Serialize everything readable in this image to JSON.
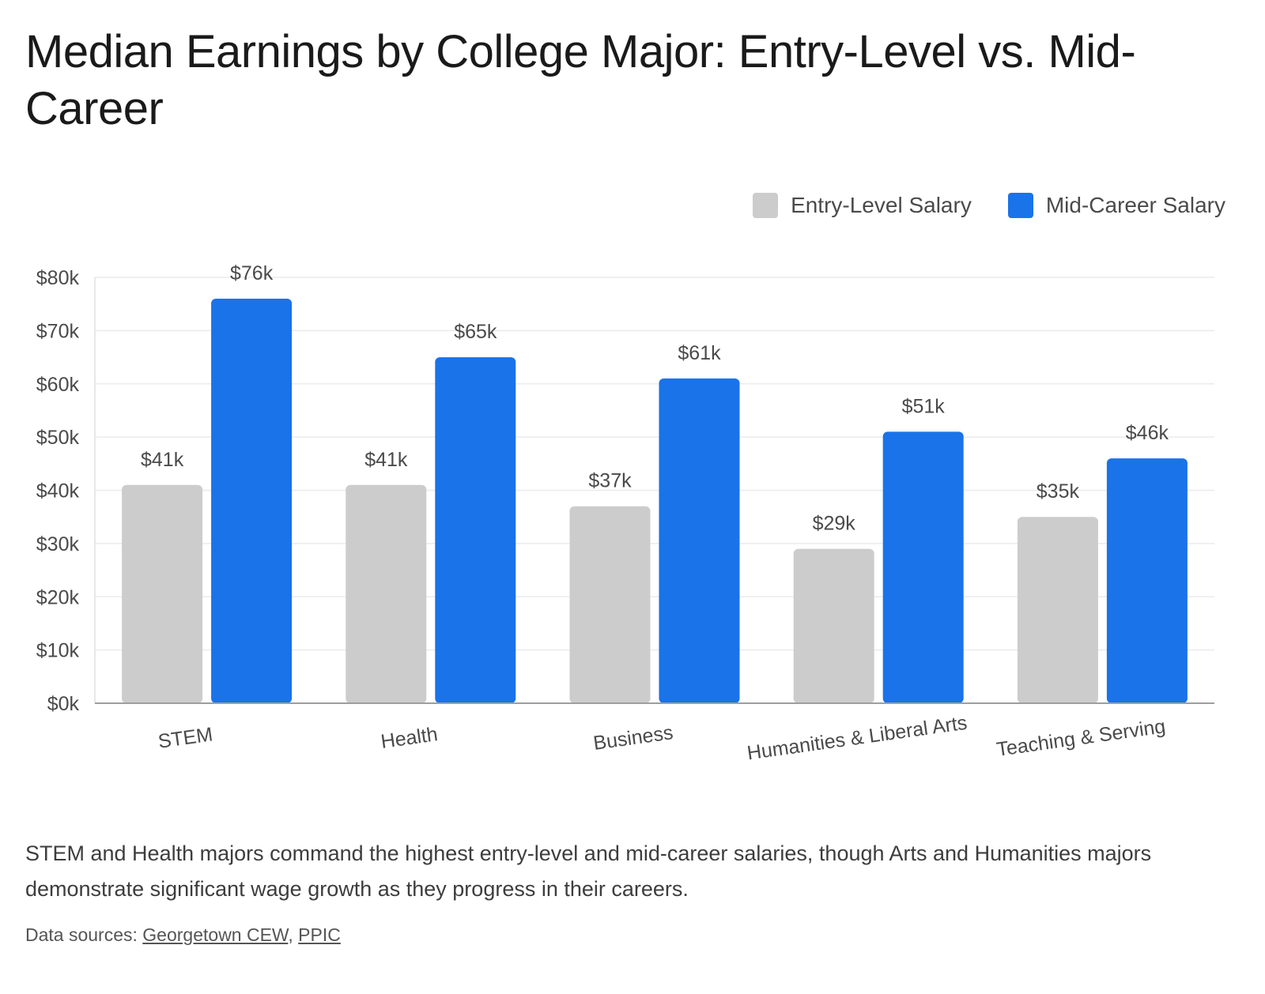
{
  "title": "Median Earnings by College Major: Entry-Level vs. Mid-Career",
  "legend": {
    "entry_label": "Entry-Level Salary",
    "mid_label": "Mid-Career Salary"
  },
  "colors": {
    "entry": "#cccccc",
    "mid": "#1a73e8",
    "grid": "#ebebeb",
    "axis": "#9e9e9e",
    "text": "#4a4a4a"
  },
  "chart_data": {
    "type": "bar",
    "categories": [
      "STEM",
      "Health",
      "Business",
      "Humanities & Liberal Arts",
      "Teaching & Serving"
    ],
    "series": [
      {
        "name": "Entry-Level Salary",
        "values": [
          41,
          41,
          37,
          29,
          35
        ],
        "labels": [
          "$41k",
          "$41k",
          "$37k",
          "$29k",
          "$35k"
        ]
      },
      {
        "name": "Mid-Career Salary",
        "values": [
          76,
          65,
          61,
          51,
          46
        ],
        "labels": [
          "$76k",
          "$65k",
          "$61k",
          "$51k",
          "$46k"
        ]
      }
    ],
    "yticks": [
      "$0k",
      "$10k",
      "$20k",
      "$30k",
      "$40k",
      "$50k",
      "$60k",
      "$70k",
      "$80k"
    ],
    "ylim": [
      0,
      80
    ],
    "grid": true,
    "legend_position": "top-right"
  },
  "insight": "STEM and Health majors command the highest entry-level and mid-career salaries, though Arts and Humanities majors demonstrate significant wage growth as they progress in their careers.",
  "sources": {
    "prefix": "Data sources: ",
    "links": [
      "Georgetown CEW",
      "PPIC"
    ],
    "separator": ", "
  }
}
